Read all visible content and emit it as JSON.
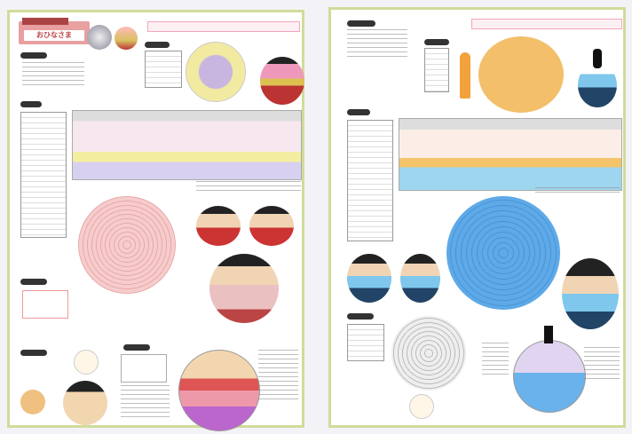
{
  "left_page": {
    "title": "おひなさま",
    "colors": {
      "accent": "#e89090",
      "border": "#cfdc9a",
      "chart_pink": "#f0b8b8",
      "chart_yellow": "#f2eaa0",
      "chart_purple": "#c9b6e0"
    }
  },
  "right_page": {
    "colors": {
      "chart_orange": "#f3bf6a",
      "chart_blue": "#5ea9e8",
      "chart_gray": "#e6e6e6",
      "stripe_blue": "#7fc7ec"
    }
  }
}
